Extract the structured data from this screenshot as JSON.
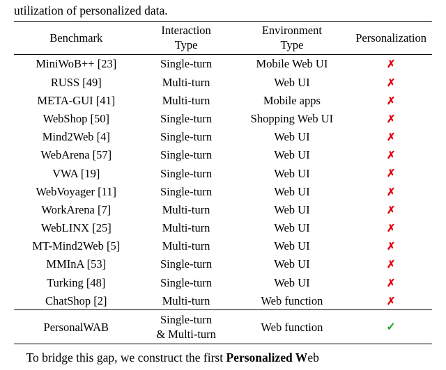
{
  "fragments": {
    "top_prefix": "utilization of personalized data.",
    "bottom_prefix": "To bridge this gap, we construct the first ",
    "bottom_bold": "Personalized W",
    "bottom_tail": "eb"
  },
  "table": {
    "columns": [
      {
        "line1": "Benchmark",
        "line2": ""
      },
      {
        "line1": "Interaction",
        "line2": "Type"
      },
      {
        "line1": "Environment",
        "line2": "Type"
      },
      {
        "line1": "Personalization",
        "line2": ""
      }
    ],
    "groups": [
      {
        "rows": [
          {
            "benchmark": "MiniWoB++ [23]",
            "interaction": "Single-turn",
            "environment": "Mobile Web UI",
            "personalization": "x"
          },
          {
            "benchmark": "RUSS [49]",
            "interaction": "Multi-turn",
            "environment": "Web UI",
            "personalization": "x"
          },
          {
            "benchmark": "META-GUI [41]",
            "interaction": "Multi-turn",
            "environment": "Mobile apps",
            "personalization": "x"
          },
          {
            "benchmark": "WebShop [50]",
            "interaction": "Single-turn",
            "environment": "Shopping Web UI",
            "personalization": "x"
          },
          {
            "benchmark": "Mind2Web [4]",
            "interaction": "Single-turn",
            "environment": "Web UI",
            "personalization": "x"
          },
          {
            "benchmark": "WebArena [57]",
            "interaction": "Single-turn",
            "environment": "Web UI",
            "personalization": "x"
          },
          {
            "benchmark": "VWA [19]",
            "interaction": "Single-turn",
            "environment": "Web UI",
            "personalization": "x"
          },
          {
            "benchmark": "WebVoyager [11]",
            "interaction": "Single-turn",
            "environment": "Web UI",
            "personalization": "x"
          },
          {
            "benchmark": "WorkArena [7]",
            "interaction": "Multi-turn",
            "environment": "Web UI",
            "personalization": "x"
          },
          {
            "benchmark": "WebLINX [25]",
            "interaction": "Multi-turn",
            "environment": "Web UI",
            "personalization": "x"
          },
          {
            "benchmark": "MT-Mind2Web [5]",
            "interaction": "Multi-turn",
            "environment": "Web UI",
            "personalization": "x"
          },
          {
            "benchmark": "MMInA [53]",
            "interaction": "Single-turn",
            "environment": "Web UI",
            "personalization": "x"
          },
          {
            "benchmark": "Turking [48]",
            "interaction": "Single-turn",
            "environment": "Web UI",
            "personalization": "x"
          },
          {
            "benchmark": "ChatShop [2]",
            "interaction": "Multi-turn",
            "environment": "Web function",
            "personalization": "x"
          }
        ]
      },
      {
        "rows": [
          {
            "benchmark": "PersonalWAB",
            "interaction_line1": "Single-turn",
            "interaction_line2": "& Multi-turn",
            "environment": "Web function",
            "personalization": "check"
          }
        ]
      }
    ],
    "glyphs": {
      "x": "✗",
      "check": "✓"
    }
  }
}
